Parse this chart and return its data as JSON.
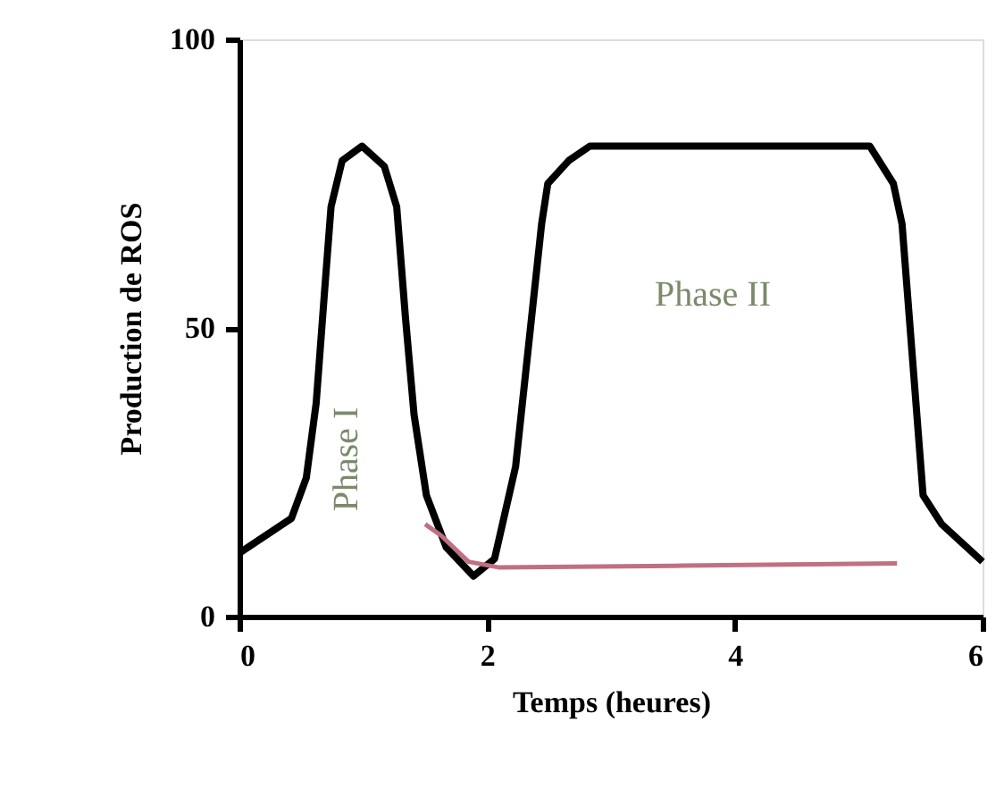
{
  "chart_data": {
    "type": "line",
    "xlabel": "Temps (heures)",
    "ylabel": "Production de ROS",
    "xlim": [
      0,
      6
    ],
    "xticks": [
      0,
      2,
      4,
      6
    ],
    "ylim": [
      0,
      100
    ],
    "yticks": [
      0,
      50,
      100
    ],
    "grid": false,
    "marker": "none",
    "line_style": "solid",
    "series": [
      {
        "color": "#000000",
        "x": [
          0,
          0.42,
          0.54,
          0.62,
          0.69,
          0.74,
          0.83,
          0.99,
          1.17,
          1.27,
          1.34,
          1.41,
          1.51,
          1.67,
          1.89,
          2.06,
          2.23,
          2.44,
          2.49,
          2.66,
          2.83,
          5.09,
          5.28,
          5.35,
          5.52,
          5.67,
          6
        ],
        "values": [
          11,
          17,
          24,
          37,
          57,
          71,
          79,
          81.5,
          78,
          71,
          52,
          35,
          21,
          12,
          7,
          10,
          26,
          68,
          75,
          79,
          81.5,
          81.5,
          75,
          68,
          21,
          16,
          9.5
        ]
      },
      {
        "color": "#c07080",
        "x": [
          1.5,
          1.63,
          1.85,
          2.1,
          3.5,
          5.31
        ],
        "values": [
          16,
          14,
          9.5,
          8.5,
          8.8,
          9.2
        ]
      }
    ],
    "annotations": [
      "Phase I",
      "Phase II"
    ]
  }
}
